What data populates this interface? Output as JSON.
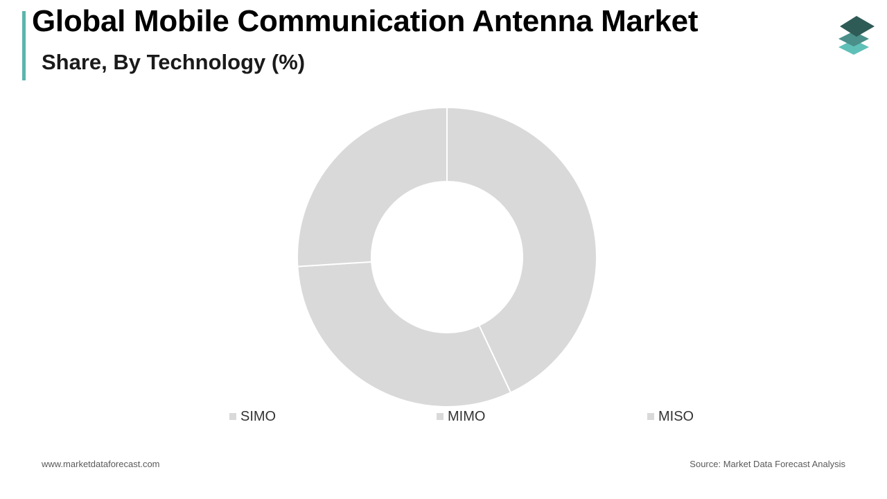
{
  "header": {
    "title": "Global Mobile Communication Antenna Market",
    "subtitle": "Share, By Technology (%)"
  },
  "footer": {
    "website": "www.marketdataforecast.com",
    "source": "Source: Market Data Forecast Analysis"
  },
  "colors": {
    "accent": "#5bb5ad",
    "slice_fill": "#d9d9d9",
    "slice_stroke": "#ffffff",
    "legend_swatch": "#d9d9d9",
    "logo_dark": "#2f5b57",
    "logo_mid": "#4a8f89",
    "logo_light": "#5fc0b8"
  },
  "icons": {
    "logo": "stacked-layers-logo-icon"
  },
  "chart_data": {
    "type": "pie",
    "donut": true,
    "title": "Global Mobile Communication Antenna Market",
    "subtitle": "Share, By Technology (%)",
    "categories": [
      "SIMO",
      "MIMO",
      "MISO"
    ],
    "values": [
      43,
      31,
      26
    ],
    "legend": [
      "SIMO",
      "MIMO",
      "MISO"
    ],
    "legend_position": "bottom"
  }
}
